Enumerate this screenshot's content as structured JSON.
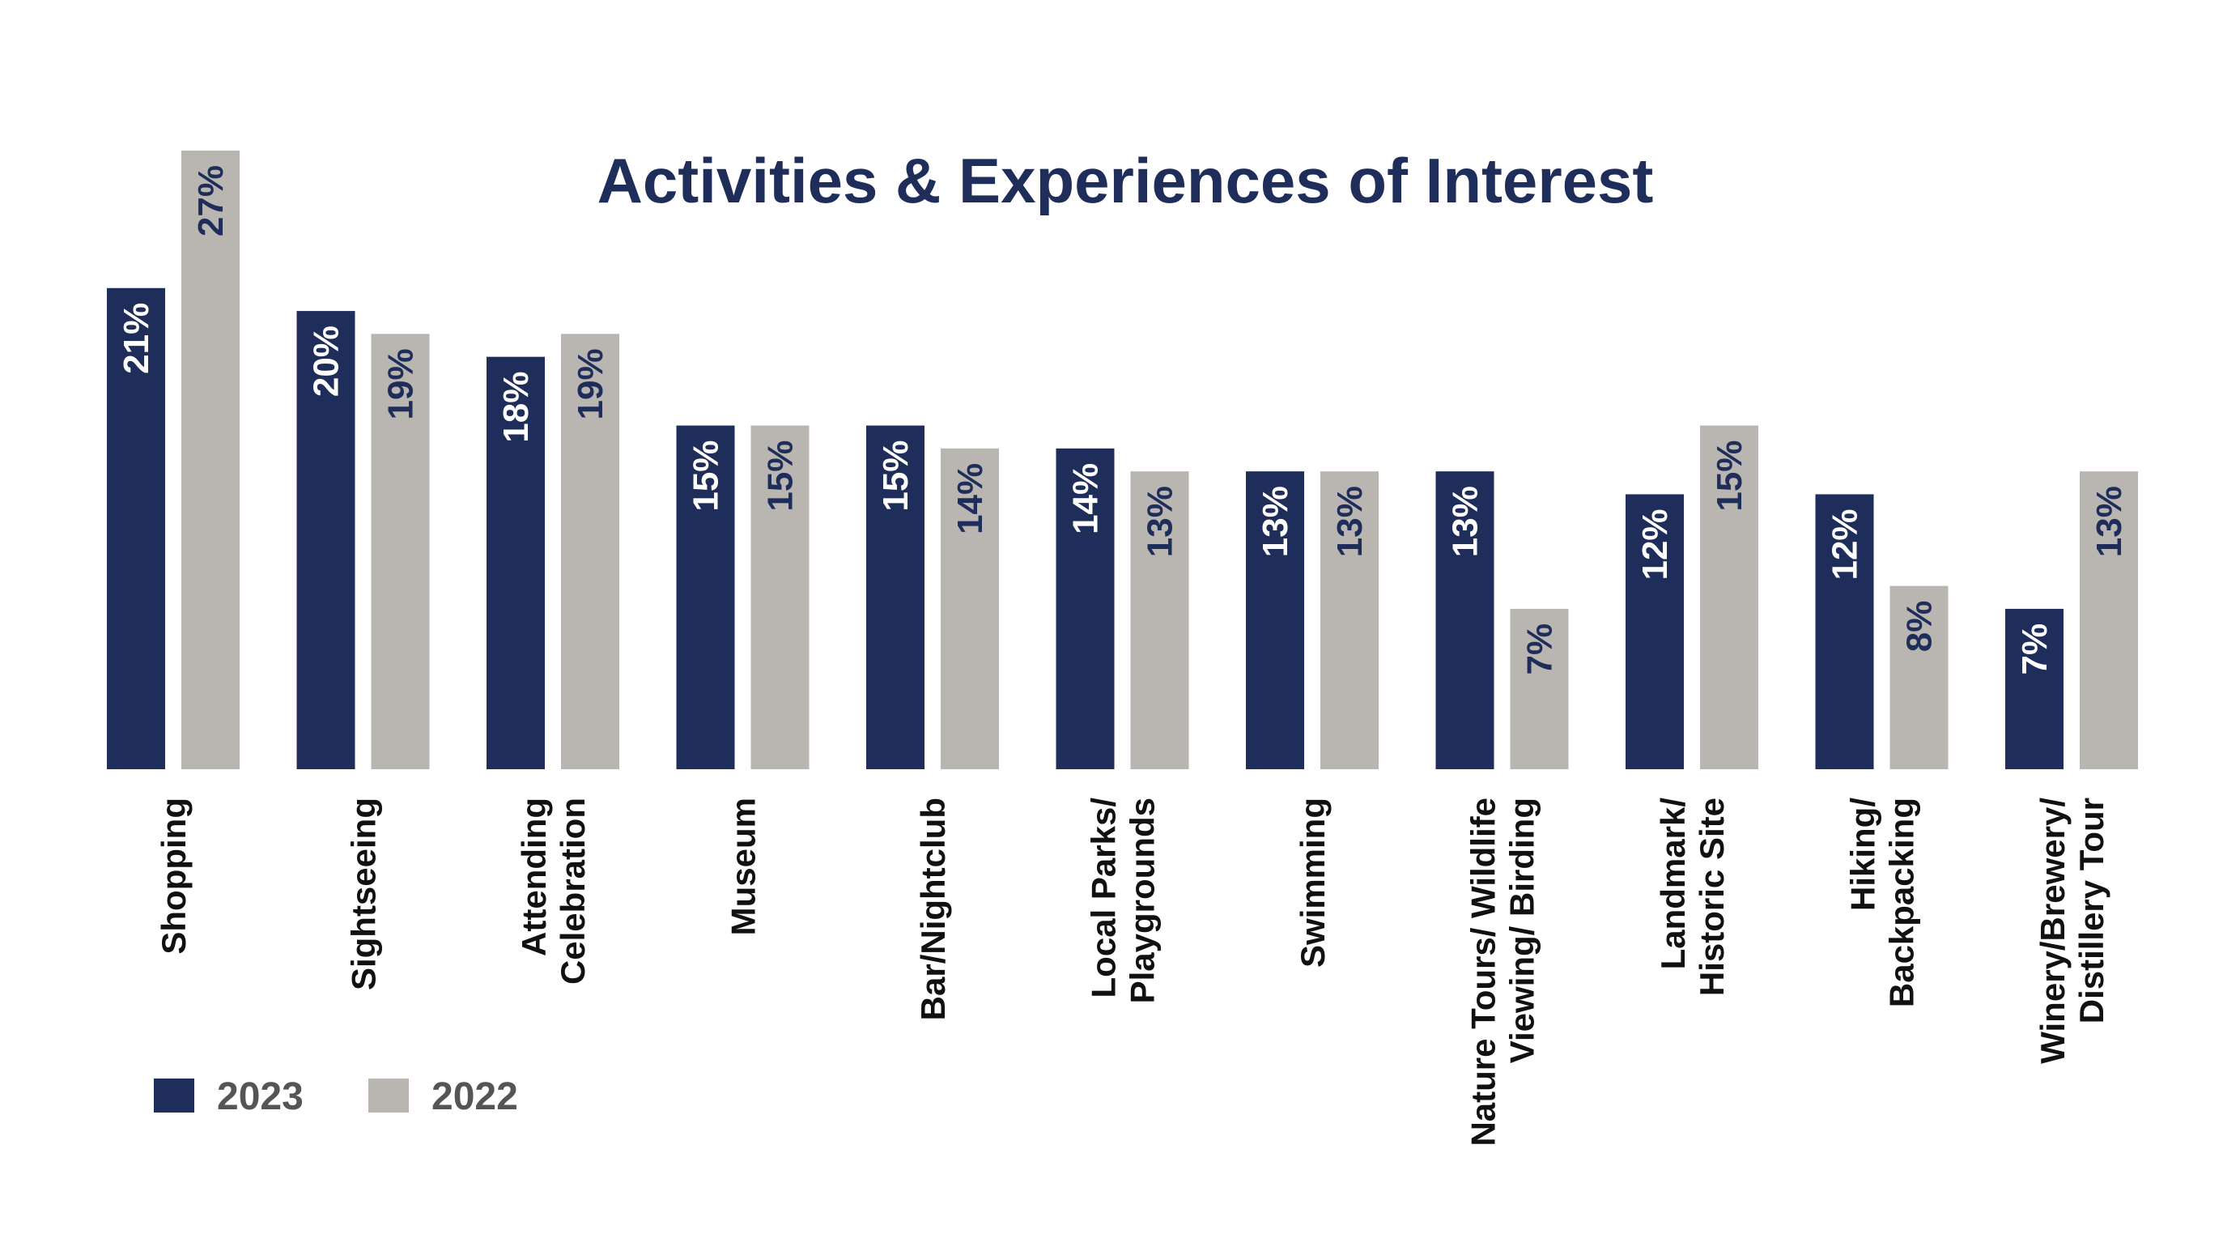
{
  "chart_data": {
    "type": "bar",
    "title": "Activities & Experiences of Interest",
    "categories": [
      [
        "Shopping"
      ],
      [
        "Sightseeing"
      ],
      [
        "Attending",
        "Celebration"
      ],
      [
        "Museum"
      ],
      [
        "Bar/Nightclub"
      ],
      [
        "Local Parks/",
        "Playgrounds"
      ],
      [
        "Swimming"
      ],
      [
        "Nature Tours/ Wildlife",
        "Viewing/ Birding"
      ],
      [
        "Landmark/",
        "Historic Site"
      ],
      [
        "Hiking/",
        "Backpacking"
      ],
      [
        "Winery/Brewery/",
        "Distillery Tour"
      ]
    ],
    "series": [
      {
        "name": "2023",
        "color": "#1f2d5a",
        "label_color": "#ffffff",
        "values": [
          21,
          20,
          18,
          15,
          15,
          14,
          13,
          13,
          12,
          12,
          7
        ],
        "labels": [
          "21%",
          "20%",
          "18%",
          "15%",
          "15%",
          "14%",
          "13%",
          "13%",
          "12%",
          "12%",
          "7%"
        ]
      },
      {
        "name": "2022",
        "color": "#b9b6b2",
        "label_color": "#1f2d5a",
        "values": [
          27,
          19,
          19,
          15,
          14,
          13,
          13,
          7,
          15,
          8,
          13
        ],
        "labels": [
          "27%",
          "19%",
          "19%",
          "15%",
          "14%",
          "13%",
          "13%",
          "7%",
          "15%",
          "8%",
          "13%"
        ]
      }
    ],
    "ylim": [
      0,
      27
    ],
    "grid": false,
    "legend_position": "bottom-left",
    "xlabel": "",
    "ylabel": ""
  }
}
